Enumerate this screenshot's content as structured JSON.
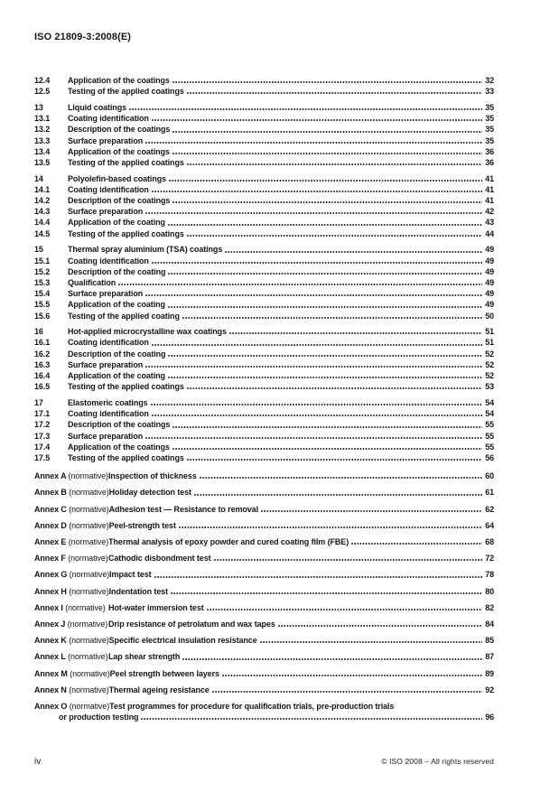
{
  "header": {
    "doc_code": "ISO 21809-3:2008(E)"
  },
  "toc": {
    "sections": [
      {
        "rows": [
          {
            "num": "12.4",
            "title": "Application of the coatings",
            "page": "32"
          },
          {
            "num": "12.5",
            "title": "Testing of the applied coatings",
            "page": "33"
          }
        ]
      },
      {
        "rows": [
          {
            "num": "13",
            "title": "Liquid coatings",
            "page": "35"
          },
          {
            "num": "13.1",
            "title": "Coating identification",
            "page": "35"
          },
          {
            "num": "13.2",
            "title": "Description of the coatings",
            "page": "35"
          },
          {
            "num": "13.3",
            "title": "Surface preparation",
            "page": "35"
          },
          {
            "num": "13.4",
            "title": "Application of the coatings",
            "page": "36"
          },
          {
            "num": "13.5",
            "title": "Testing of the applied coatings",
            "page": "36"
          }
        ]
      },
      {
        "rows": [
          {
            "num": "14",
            "title": "Polyolefin-based coatings",
            "page": "41"
          },
          {
            "num": "14.1",
            "title": "Coating identification",
            "page": "41"
          },
          {
            "num": "14.2",
            "title": "Description of the coatings",
            "page": "41"
          },
          {
            "num": "14.3",
            "title": "Surface preparation",
            "page": "42"
          },
          {
            "num": "14.4",
            "title": "Application of the coating",
            "page": "43"
          },
          {
            "num": "14.5",
            "title": "Testing of the applied coatings",
            "page": "44"
          }
        ]
      },
      {
        "rows": [
          {
            "num": "15",
            "title": "Thermal spray aluminium (TSA) coatings",
            "page": "49"
          },
          {
            "num": "15.1",
            "title": "Coating identification",
            "page": "49"
          },
          {
            "num": "15.2",
            "title": "Description of the coating",
            "page": "49"
          },
          {
            "num": "15.3",
            "title": "Qualification",
            "page": "49"
          },
          {
            "num": "15.4",
            "title": "Surface preparation",
            "page": "49"
          },
          {
            "num": "15.5",
            "title": "Application of the coating",
            "page": "49"
          },
          {
            "num": "15.6",
            "title": "Testing of the applied coating",
            "page": "50"
          }
        ]
      },
      {
        "rows": [
          {
            "num": "16",
            "title": "Hot-applied microcrystalline wax coatings",
            "page": "51"
          },
          {
            "num": "16.1",
            "title": "Coating identification",
            "page": "51"
          },
          {
            "num": "16.2",
            "title": "Description of the coating",
            "page": "52"
          },
          {
            "num": "16.3",
            "title": "Surface preparation",
            "page": "52"
          },
          {
            "num": "16.4",
            "title": "Application of the coating",
            "page": "52"
          },
          {
            "num": "16.5",
            "title": "Testing of the applied coatings",
            "page": "53"
          }
        ]
      },
      {
        "rows": [
          {
            "num": "17",
            "title": "Elastomeric coatings",
            "page": "54"
          },
          {
            "num": "17.1",
            "title": "Coating identification",
            "page": "54"
          },
          {
            "num": "17.2",
            "title": "Description of the coatings",
            "page": "55"
          },
          {
            "num": "17.3",
            "title": "Surface preparation",
            "page": "55"
          },
          {
            "num": "17.4",
            "title": "Application of the coatings",
            "page": "55"
          },
          {
            "num": "17.5",
            "title": "Testing of the applied coatings",
            "page": "56"
          }
        ]
      }
    ],
    "annexes": [
      {
        "name": "Annex A",
        "qualifier": "(normative)",
        "title": "Inspection of thickness",
        "page": "60"
      },
      {
        "name": "Annex B",
        "qualifier": "(normative)",
        "title": "Holiday detection test",
        "page": "61"
      },
      {
        "name": "Annex C",
        "qualifier": "(normative)",
        "title": "Adhesion test — Resistance to removal",
        "page": "62"
      },
      {
        "name": "Annex D",
        "qualifier": "(normative)",
        "title": "Peel-strength test",
        "page": "64"
      },
      {
        "name": "Annex E",
        "qualifier": "(normative)",
        "title": "Thermal analysis of epoxy powder and cured coating film (FBE)",
        "page": "68"
      },
      {
        "name": "Annex F",
        "qualifier": "(normative)",
        "title": "Cathodic disbondment test",
        "page": "72"
      },
      {
        "name": "Annex G",
        "qualifier": "(normative)",
        "title": "Impact test",
        "page": "78"
      },
      {
        "name": "Annex H",
        "qualifier": "(normative)",
        "title": "Indentation test",
        "page": "80"
      },
      {
        "name": "Annex I",
        "qualifier": "(normative)",
        "title": "Hot-water immersion test",
        "page": "82"
      },
      {
        "name": "Annex J",
        "qualifier": "(normative)",
        "title": "Drip resistance of petrolatum and wax tapes",
        "page": "84"
      },
      {
        "name": "Annex K",
        "qualifier": "(normative)",
        "title": "Specific electrical insulation resistance",
        "page": "85"
      },
      {
        "name": "Annex L",
        "qualifier": "(normative)",
        "title": "Lap shear strength",
        "page": "87"
      },
      {
        "name": "Annex M",
        "qualifier": "(normative)",
        "title": "Peel strength between layers",
        "page": "89"
      },
      {
        "name": "Annex N",
        "qualifier": "(normative)",
        "title": "Thermal ageing resistance",
        "page": "92"
      },
      {
        "name": "Annex O",
        "qualifier": "(normative)",
        "title_line1": "Test programmes for procedure for qualification trials, pre-production trials",
        "title_line2": "or production testing",
        "page": "96"
      }
    ]
  },
  "footer": {
    "page_label": "iv",
    "copyright": "© ISO 2008 – All rights reserved"
  }
}
